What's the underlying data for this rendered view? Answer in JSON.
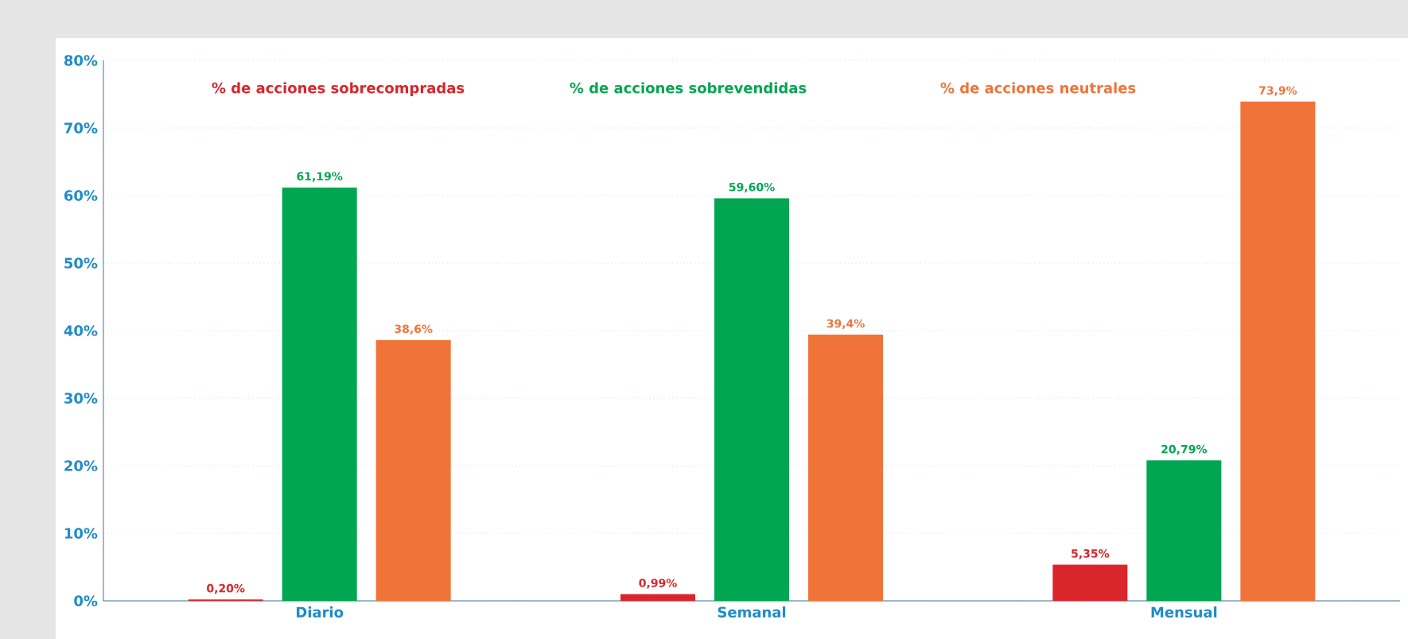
{
  "chart_data": {
    "type": "bar",
    "categories": [
      "Diario",
      "Semanal",
      "Mensual"
    ],
    "series": [
      {
        "name": "% de acciones sobrecompradas",
        "color": "#d9262b",
        "values": [
          0.2,
          0.99,
          5.35
        ],
        "value_labels": [
          "0,20%",
          "0,99%",
          "5,35%"
        ]
      },
      {
        "name": "% de acciones sobrevendidas",
        "color": "#00a651",
        "values": [
          61.19,
          59.6,
          20.79
        ],
        "value_labels": [
          "61,19%",
          "59,60%",
          "20,79%"
        ]
      },
      {
        "name": "% de acciones neutrales",
        "color": "#f0743a",
        "values": [
          38.6,
          39.4,
          73.9
        ],
        "value_labels": [
          "38,6%",
          "39,4%",
          "73,9%"
        ]
      }
    ],
    "ylim": [
      0,
      80
    ],
    "yticks": [
      {
        "value": 0,
        "label": "0%"
      },
      {
        "value": 10,
        "label": "10%"
      },
      {
        "value": 20,
        "label": "20%"
      },
      {
        "value": 30,
        "label": "30%"
      },
      {
        "value": 40,
        "label": "40%"
      },
      {
        "value": 50,
        "label": "50%"
      },
      {
        "value": 60,
        "label": "60%"
      },
      {
        "value": 70,
        "label": "70%"
      },
      {
        "value": 80,
        "label": "80%"
      }
    ],
    "grid": "y",
    "legend": "top"
  }
}
